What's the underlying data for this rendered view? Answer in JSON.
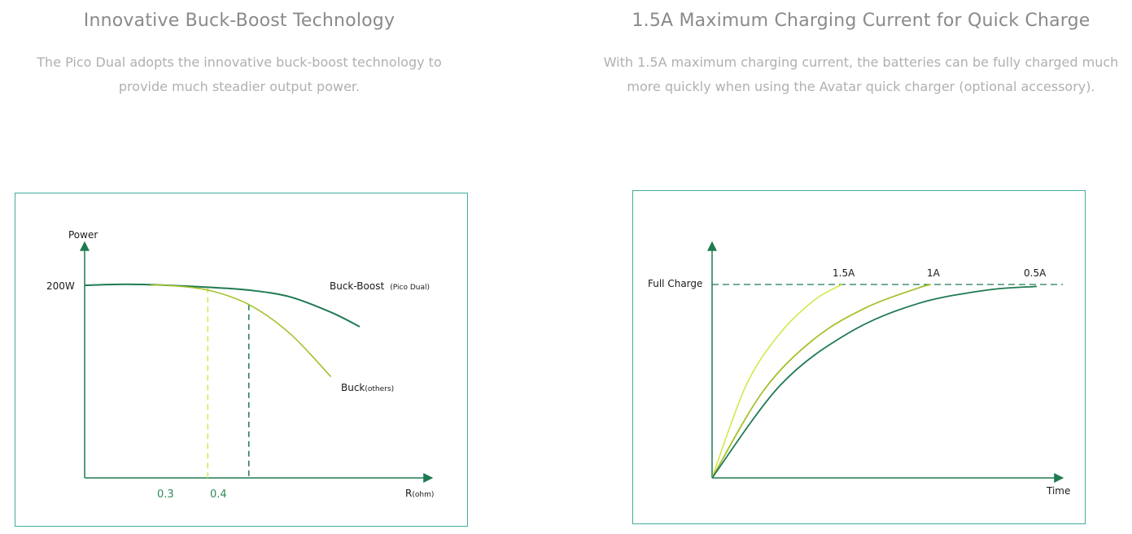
{
  "left": {
    "title": "Innovative Buck-Boost Technology",
    "desc_line1": "The Pico Dual adopts the innovative buck-boost technology to",
    "desc_line2": "provide much steadier output power."
  },
  "right": {
    "title": "1.5A Maximum Charging Current for Quick Charge",
    "desc_line1": "With 1.5A maximum charging current, the batteries can be fully charged much",
    "desc_line2": "more quickly when using the Avatar quick charger (optional accessory)."
  },
  "colors": {
    "axis": "#1f7a52",
    "dark_green": "#1f7a52",
    "mid_green": "#a5c12c",
    "light_green": "#d6e64a",
    "border": "#3fae9a"
  },
  "chart_data": [
    {
      "type": "line",
      "ylabel": "Power",
      "xlabel_main": "R",
      "xlabel_unit": "(ohm)",
      "y_tick_label": "200W",
      "x_tick_labels": [
        "0.3",
        "0.4"
      ],
      "xlim": [
        0,
        0.9
      ],
      "ylim": [
        0,
        210
      ],
      "series": [
        {
          "name_main": "Buck-Boost",
          "name_note": "(Pico Dual)",
          "color": "#1f7a52",
          "x": [
            0,
            0.1,
            0.2,
            0.3,
            0.4,
            0.5,
            0.6,
            0.67
          ],
          "y": [
            200,
            201,
            200,
            198,
            195,
            188,
            172,
            157
          ]
        },
        {
          "name_main": "Buck",
          "name_note": "(others)",
          "color": "#a5c12c",
          "x": [
            0.16,
            0.2,
            0.3,
            0.4,
            0.5,
            0.6
          ],
          "y": [
            200,
            200,
            195,
            180,
            150,
            105
          ]
        }
      ],
      "markers": [
        {
          "x": 0.3,
          "y": 198,
          "color": "#d6e64a",
          "label": "0.3"
        },
        {
          "x": 0.4,
          "y": 180,
          "color": "#1f7a52",
          "label": "0.4"
        }
      ]
    },
    {
      "type": "line",
      "xlabel": "Time",
      "y_tick_label": "Full Charge",
      "full_charge_level": 100,
      "xlim": [
        0,
        100
      ],
      "ylim": [
        0,
        118
      ],
      "series": [
        {
          "name": "1.5A",
          "color": "#d6e64a",
          "x": [
            0,
            10,
            20,
            30,
            38
          ],
          "y": [
            0,
            48,
            75,
            92,
            100
          ]
        },
        {
          "name": "1A",
          "color": "#a5c12c",
          "x": [
            0,
            15,
            30,
            45,
            60,
            64
          ],
          "y": [
            0,
            45,
            72,
            88,
            98,
            100
          ]
        },
        {
          "name": "0.5A",
          "color": "#1f7a52",
          "x": [
            0,
            20,
            40,
            60,
            80,
            95
          ],
          "y": [
            0,
            48,
            75,
            90,
            97,
            99
          ]
        }
      ]
    }
  ]
}
